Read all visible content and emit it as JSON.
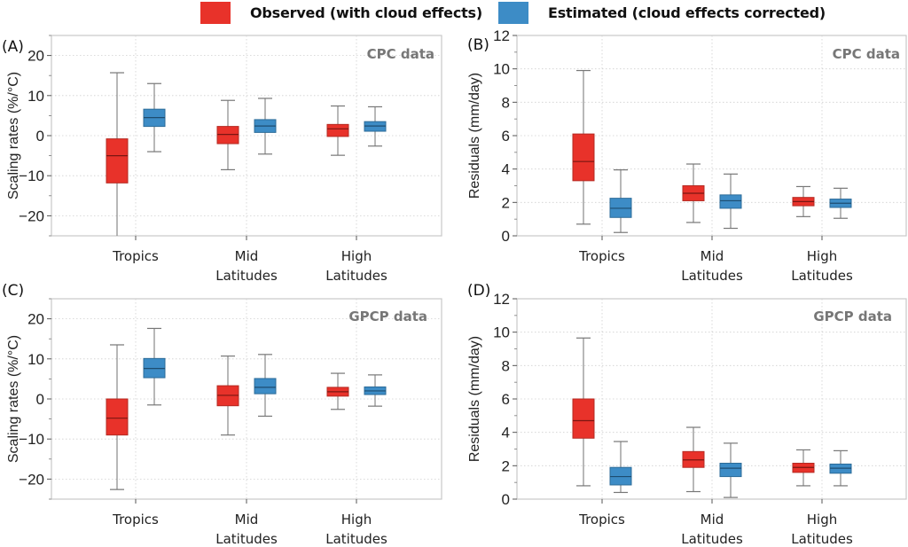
{
  "legend": {
    "items": [
      {
        "label": "Observed (with cloud effects)",
        "color": "#e8322a"
      },
      {
        "label": "Estimated (cloud effects corrected)",
        "color": "#3d8cc6"
      }
    ]
  },
  "chart_data": [
    {
      "type": "box",
      "panel": "(A)",
      "annotation": "CPC data",
      "ylabel": "Scaling rates (%/°C)",
      "ylim": [
        -25,
        25
      ],
      "yticks": [
        -20,
        -10,
        0,
        10,
        20
      ],
      "grid": true,
      "categories": [
        "Tropics",
        "Mid\nLatitudes",
        "High\nLatitudes"
      ],
      "series": [
        {
          "name": "Observed (with cloud effects)",
          "color": "#e8322a",
          "boxes": [
            {
              "whisker_low": -25,
              "q1": -11.8,
              "median": -5.0,
              "q3": -0.8,
              "whisker_high": 15.7
            },
            {
              "whisker_low": -8.5,
              "q1": -2.0,
              "median": 0.3,
              "q3": 2.3,
              "whisker_high": 8.8
            },
            {
              "whisker_low": -4.9,
              "q1": -0.2,
              "median": 1.7,
              "q3": 2.8,
              "whisker_high": 7.4
            }
          ]
        },
        {
          "name": "Estimated (cloud effects corrected)",
          "color": "#3d8cc6",
          "boxes": [
            {
              "whisker_low": -4.0,
              "q1": 2.3,
              "median": 4.5,
              "q3": 6.6,
              "whisker_high": 13.0
            },
            {
              "whisker_low": -4.6,
              "q1": 0.8,
              "median": 2.4,
              "q3": 4.0,
              "whisker_high": 9.3
            },
            {
              "whisker_low": -2.6,
              "q1": 1.1,
              "median": 2.4,
              "q3": 3.5,
              "whisker_high": 7.2
            }
          ]
        }
      ]
    },
    {
      "type": "box",
      "panel": "(B)",
      "annotation": "CPC data",
      "ylabel": "Residuals (mm/day)",
      "ylim": [
        0,
        12
      ],
      "yticks": [
        0,
        2,
        4,
        6,
        8,
        10,
        12
      ],
      "grid": true,
      "categories": [
        "Tropics",
        "Mid\nLatitudes",
        "High\nLatitudes"
      ],
      "series": [
        {
          "name": "Observed (with cloud effects)",
          "color": "#e8322a",
          "boxes": [
            {
              "whisker_low": 0.7,
              "q1": 3.3,
              "median": 4.45,
              "q3": 6.1,
              "whisker_high": 9.9
            },
            {
              "whisker_low": 0.8,
              "q1": 2.1,
              "median": 2.55,
              "q3": 3.0,
              "whisker_high": 4.3
            },
            {
              "whisker_low": 1.15,
              "q1": 1.8,
              "median": 2.05,
              "q3": 2.3,
              "whisker_high": 2.95
            }
          ]
        },
        {
          "name": "Estimated (cloud effects corrected)",
          "color": "#3d8cc6",
          "boxes": [
            {
              "whisker_low": 0.2,
              "q1": 1.1,
              "median": 1.65,
              "q3": 2.25,
              "whisker_high": 3.95
            },
            {
              "whisker_low": 0.45,
              "q1": 1.65,
              "median": 2.1,
              "q3": 2.45,
              "whisker_high": 3.7
            },
            {
              "whisker_low": 1.05,
              "q1": 1.7,
              "median": 1.95,
              "q3": 2.2,
              "whisker_high": 2.85
            }
          ]
        }
      ]
    },
    {
      "type": "box",
      "panel": "(C)",
      "annotation": "GPCP data",
      "ylabel": "Scaling rates (%/°C)",
      "ylim": [
        -25,
        25
      ],
      "yticks": [
        -20,
        -10,
        0,
        10,
        20
      ],
      "grid": true,
      "categories": [
        "Tropics",
        "Mid\nLatitudes",
        "High\nLatitudes"
      ],
      "series": [
        {
          "name": "Observed (with cloud effects)",
          "color": "#e8322a",
          "boxes": [
            {
              "whisker_low": -22.6,
              "q1": -9.0,
              "median": -4.8,
              "q3": 0.0,
              "whisker_high": 13.5
            },
            {
              "whisker_low": -9.0,
              "q1": -1.7,
              "median": 0.9,
              "q3": 3.3,
              "whisker_high": 10.7
            },
            {
              "whisker_low": -2.6,
              "q1": 0.7,
              "median": 1.8,
              "q3": 2.9,
              "whisker_high": 6.4
            }
          ]
        },
        {
          "name": "Estimated (cloud effects corrected)",
          "color": "#3d8cc6",
          "boxes": [
            {
              "whisker_low": -1.5,
              "q1": 5.3,
              "median": 7.6,
              "q3": 10.1,
              "whisker_high": 17.6
            },
            {
              "whisker_low": -4.3,
              "q1": 1.3,
              "median": 2.9,
              "q3": 5.1,
              "whisker_high": 11.1
            },
            {
              "whisker_low": -1.8,
              "q1": 1.1,
              "median": 2.0,
              "q3": 3.0,
              "whisker_high": 6.0
            }
          ]
        }
      ]
    },
    {
      "type": "box",
      "panel": "(D)",
      "annotation": "GPCP data",
      "ylabel": "Residuals (mm/day)",
      "ylim": [
        0,
        12
      ],
      "yticks": [
        0,
        2,
        4,
        6,
        8,
        10,
        12
      ],
      "grid": true,
      "categories": [
        "Tropics",
        "Mid\nLatitudes",
        "High\nLatitudes"
      ],
      "series": [
        {
          "name": "Observed (with cloud effects)",
          "color": "#e8322a",
          "boxes": [
            {
              "whisker_low": 0.8,
              "q1": 3.65,
              "median": 4.7,
              "q3": 6.0,
              "whisker_high": 9.65
            },
            {
              "whisker_low": 0.45,
              "q1": 1.9,
              "median": 2.35,
              "q3": 2.85,
              "whisker_high": 4.3
            },
            {
              "whisker_low": 0.8,
              "q1": 1.6,
              "median": 1.9,
              "q3": 2.15,
              "whisker_high": 2.95
            }
          ]
        },
        {
          "name": "Estimated (cloud effects corrected)",
          "color": "#3d8cc6",
          "boxes": [
            {
              "whisker_low": 0.4,
              "q1": 0.85,
              "median": 1.35,
              "q3": 1.9,
              "whisker_high": 3.45
            },
            {
              "whisker_low": 0.1,
              "q1": 1.35,
              "median": 1.85,
              "q3": 2.15,
              "whisker_high": 3.35
            },
            {
              "whisker_low": 0.8,
              "q1": 1.55,
              "median": 1.85,
              "q3": 2.1,
              "whisker_high": 2.9
            }
          ]
        }
      ]
    }
  ]
}
